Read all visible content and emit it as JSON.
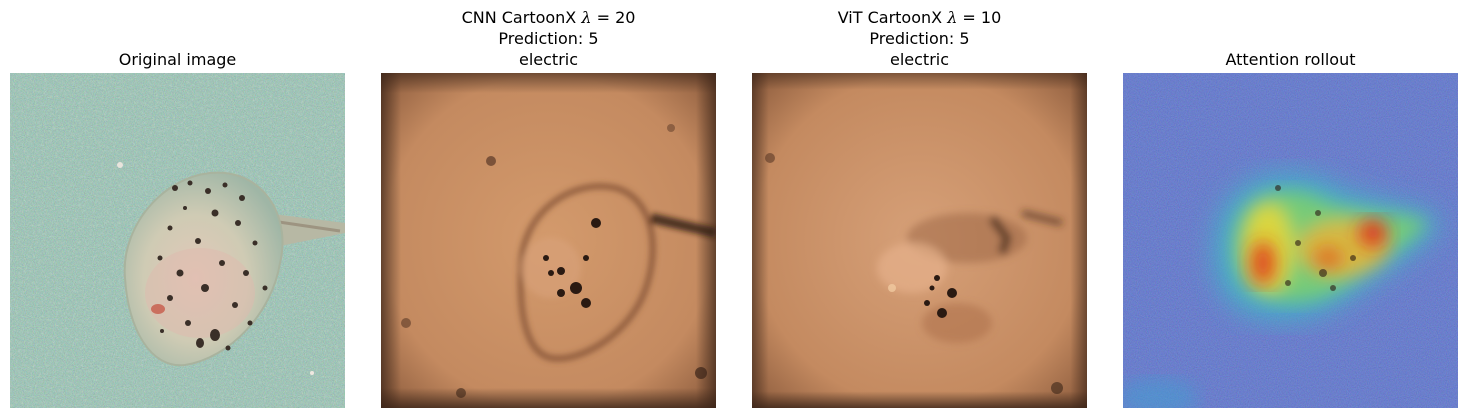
{
  "panels": [
    {
      "id": "original",
      "title_lines": [
        "Original image"
      ]
    },
    {
      "id": "cnn",
      "title_line1_prefix": "CNN CartoonX ",
      "lambda_symbol": "λ",
      "lambda_expr": " = 20",
      "title_line2": "Prediction: 5",
      "title_line3": "electric"
    },
    {
      "id": "vit",
      "title_line1_prefix": "ViT CartoonX ",
      "lambda_symbol": "λ",
      "lambda_expr": " = 10",
      "title_line2": "Prediction: 5",
      "title_line3": "electric"
    },
    {
      "id": "rollout",
      "title_lines": [
        "Attention rollout"
      ]
    }
  ],
  "colors": {
    "seabed": "#6f9a8c",
    "ray_body": "#d4c9b5",
    "copper_mask": "#c48a60",
    "heatmap_low": "#2a3fb0",
    "heatmap_high": "#e02a1a"
  },
  "icons": [
    "stingray-photo",
    "cartoonx-mask-cnn",
    "cartoonx-mask-vit",
    "attention-heatmap"
  ]
}
